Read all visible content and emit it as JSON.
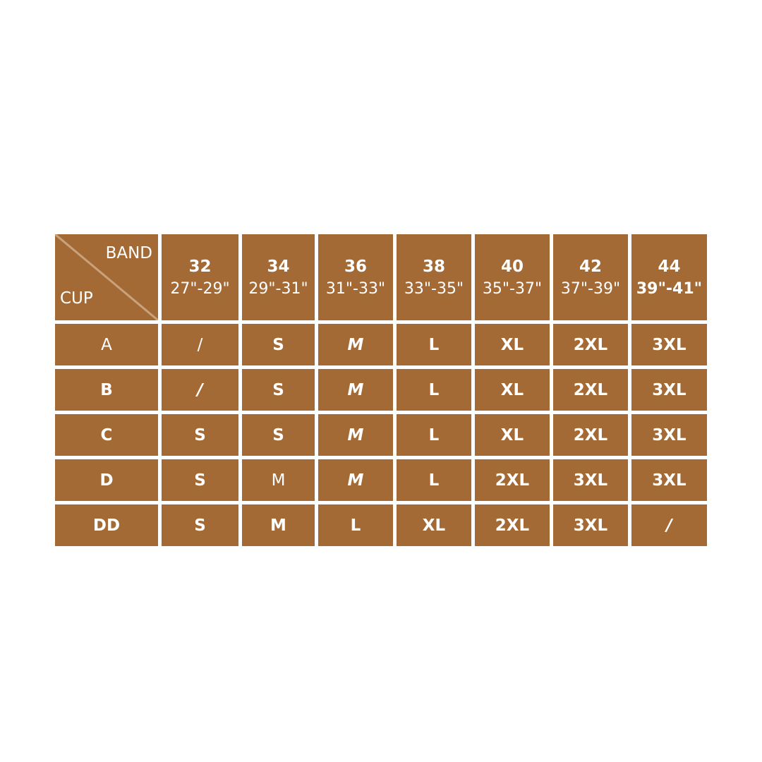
{
  "colors": {
    "cell": "#a36a35",
    "text": "#ffffff",
    "diagonal": "#c9a27c"
  },
  "corner": {
    "band_label": "BAND",
    "cup_label": "CUP"
  },
  "bands": [
    {
      "size": "32",
      "range": "27\"-29\""
    },
    {
      "size": "34",
      "range": "29\"-31\""
    },
    {
      "size": "36",
      "range": "31\"-33\""
    },
    {
      "size": "38",
      "range": "33\"-35\""
    },
    {
      "size": "40",
      "range": "35\"-37\""
    },
    {
      "size": "42",
      "range": "37\"-39\""
    },
    {
      "size": "44",
      "range": "39\"-41\""
    }
  ],
  "rows": [
    {
      "cup": "A",
      "sizes": [
        "/",
        "S",
        "M",
        "L",
        "XL",
        "2XL",
        "3XL"
      ]
    },
    {
      "cup": "B",
      "sizes": [
        "/",
        "S",
        "M",
        "L",
        "XL",
        "2XL",
        "3XL"
      ]
    },
    {
      "cup": "C",
      "sizes": [
        "S",
        "S",
        "M",
        "L",
        "XL",
        "2XL",
        "3XL"
      ]
    },
    {
      "cup": "D",
      "sizes": [
        "S",
        "M",
        "M",
        "L",
        "2XL",
        "3XL",
        "3XL"
      ]
    },
    {
      "cup": "DD",
      "sizes": [
        "S",
        "M",
        "L",
        "XL",
        "2XL",
        "3XL",
        "/"
      ]
    }
  ]
}
